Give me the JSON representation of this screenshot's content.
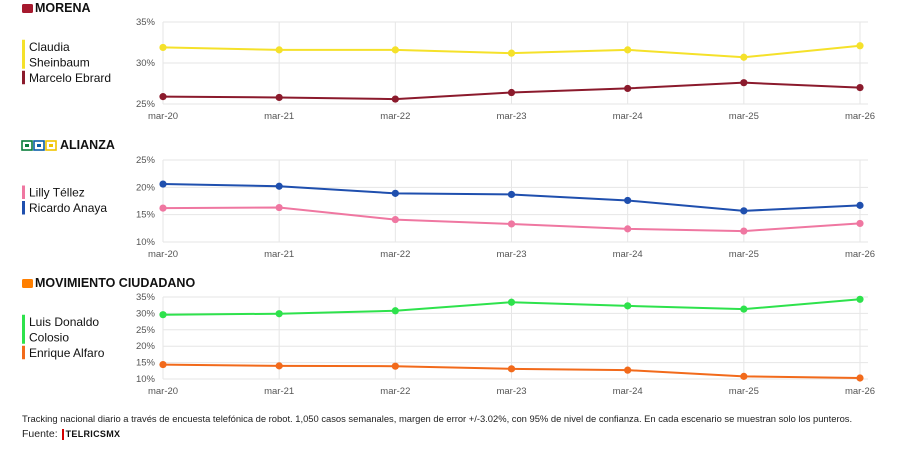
{
  "colors": {
    "morena_badge": "#a6192e",
    "alianza_badge_1": "#0b5fa8",
    "alianza_badge_2": "#0a7d3b",
    "alianza_badge_3": "#f0c400",
    "mc_badge": "#ff7f00",
    "grid": "#e6e6e6",
    "axis_text": "#555555"
  },
  "footer": {
    "note": "Tracking nacional diario a través de encuesta telefónica de robot. 1,050 casos semanales, margen de error +/-3.02%, con 95% de nivel de confianza. En cada escenario se muestran solo los punteros.",
    "source_label": "Fuente:",
    "logo_text": "TELRICSMX"
  },
  "chart_data": [
    {
      "type": "line",
      "title": "MORENA",
      "badge_icon": "morena-logo-icon",
      "x": [
        "mar-20",
        "mar-21",
        "mar-22",
        "mar-23",
        "mar-24",
        "mar-25",
        "mar-26"
      ],
      "ylim": [
        25,
        35
      ],
      "yticks": [
        "25%",
        "30%",
        "35%"
      ],
      "grid": true,
      "legend_position": "left",
      "series": [
        {
          "name": "Claudia Sheinbaum",
          "color": "#f5e12a",
          "values": [
            31.9,
            31.6,
            31.6,
            31.2,
            31.6,
            30.7,
            32.1
          ]
        },
        {
          "name": "Marcelo Ebrard",
          "color": "#8b1a2c",
          "values": [
            25.9,
            25.8,
            25.6,
            26.4,
            26.9,
            27.6,
            27.0
          ]
        }
      ]
    },
    {
      "type": "line",
      "title": "ALIANZA",
      "badge_icon": "alianza-logos-icon",
      "x": [
        "mar-20",
        "mar-21",
        "mar-22",
        "mar-23",
        "mar-24",
        "mar-25",
        "mar-26"
      ],
      "ylim": [
        10,
        25
      ],
      "yticks": [
        "10%",
        "15%",
        "20%",
        "25%"
      ],
      "grid": true,
      "legend_position": "left",
      "series": [
        {
          "name": "Lilly Téllez",
          "color": "#ef77a1",
          "values": [
            16.2,
            16.3,
            14.1,
            13.3,
            12.4,
            12.0,
            13.4
          ]
        },
        {
          "name": "Ricardo Anaya",
          "color": "#1f4fae",
          "values": [
            20.6,
            20.2,
            18.9,
            18.7,
            17.6,
            15.7,
            16.7
          ]
        }
      ]
    },
    {
      "type": "line",
      "title": "MOVIMIENTO CIUDADANO",
      "badge_icon": "mc-logo-icon",
      "x": [
        "mar-20",
        "mar-21",
        "mar-22",
        "mar-23",
        "mar-24",
        "mar-25",
        "mar-26"
      ],
      "ylim": [
        10,
        35
      ],
      "yticks": [
        "10%",
        "15%",
        "20%",
        "25%",
        "30%",
        "35%"
      ],
      "grid": true,
      "legend_position": "left",
      "series": [
        {
          "name": "Luis Donaldo Colosio",
          "color": "#2ee24c",
          "values": [
            29.6,
            29.9,
            30.8,
            33.4,
            32.3,
            31.3,
            34.3
          ]
        },
        {
          "name": "Enrique Alfaro",
          "color": "#f26a1b",
          "values": [
            14.4,
            14.0,
            13.9,
            13.1,
            12.7,
            10.8,
            10.3
          ]
        }
      ]
    }
  ]
}
